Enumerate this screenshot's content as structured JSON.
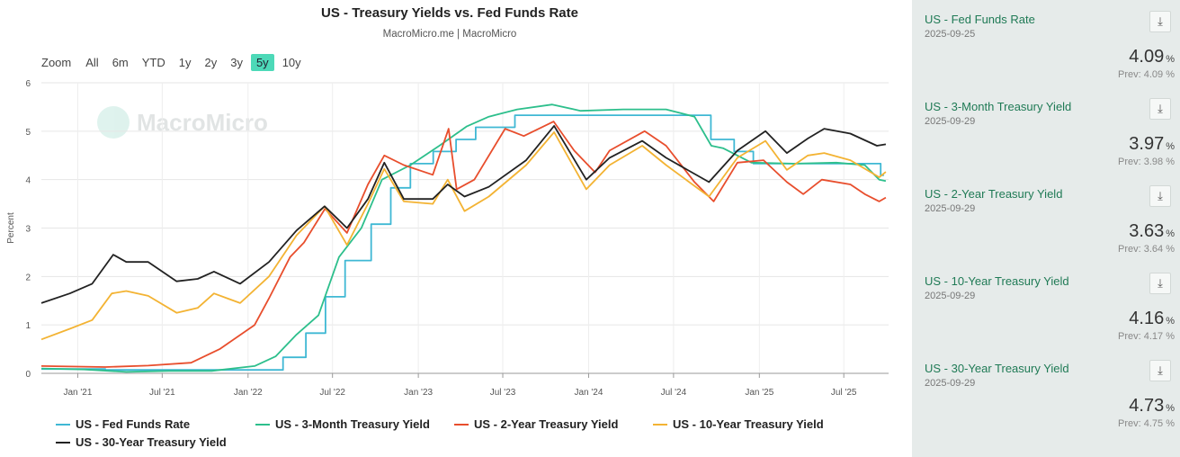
{
  "chart": {
    "title": "US - Treasury Yields vs. Fed Funds Rate",
    "subtitle": "MacroMicro.me | MacroMicro",
    "watermark": "MacroMicro",
    "zoom": {
      "label": "Zoom",
      "buttons": [
        "All",
        "6m",
        "YTD",
        "1y",
        "2y",
        "3y",
        "5y",
        "10y"
      ],
      "active": "5y"
    }
  },
  "chart_data": {
    "type": "line",
    "ylabel": "Percent",
    "ylim": [
      0,
      6
    ],
    "yticks": [
      "0",
      "1",
      "2",
      "3",
      "4",
      "5",
      "6"
    ],
    "xlim": [
      "2020-10-15",
      "2025-10-05"
    ],
    "xticks": [
      {
        "date": "2021-01-01",
        "label": "Jan '21"
      },
      {
        "date": "2021-07-01",
        "label": "Jul '21"
      },
      {
        "date": "2022-01-01",
        "label": "Jan '22"
      },
      {
        "date": "2022-07-01",
        "label": "Jul '22"
      },
      {
        "date": "2023-01-01",
        "label": "Jan '23"
      },
      {
        "date": "2023-07-01",
        "label": "Jul '23"
      },
      {
        "date": "2024-01-01",
        "label": "Jan '24"
      },
      {
        "date": "2024-07-01",
        "label": "Jul '24"
      },
      {
        "date": "2025-01-01",
        "label": "Jan '25"
      },
      {
        "date": "2025-07-01",
        "label": "Jul '25"
      }
    ],
    "grid": true,
    "legend_position": "bottom",
    "series": [
      {
        "name": "US - Fed Funds Rate",
        "color": "#3fb8d4",
        "step": true,
        "points": [
          [
            "2020-10-15",
            0.09
          ],
          [
            "2021-03-01",
            0.07
          ],
          [
            "2022-03-17",
            0.33
          ],
          [
            "2022-05-05",
            0.83
          ],
          [
            "2022-06-16",
            1.58
          ],
          [
            "2022-07-28",
            2.33
          ],
          [
            "2022-09-22",
            3.08
          ],
          [
            "2022-11-03",
            3.83
          ],
          [
            "2022-12-15",
            4.33
          ],
          [
            "2023-02-02",
            4.58
          ],
          [
            "2023-03-23",
            4.83
          ],
          [
            "2023-05-04",
            5.08
          ],
          [
            "2023-07-27",
            5.33
          ],
          [
            "2024-09-19",
            4.83
          ],
          [
            "2024-11-08",
            4.58
          ],
          [
            "2024-12-19",
            4.33
          ],
          [
            "2025-09-18",
            4.09
          ],
          [
            "2025-09-25",
            4.09
          ]
        ]
      },
      {
        "name": "US - 3-Month Treasury Yield",
        "color": "#2dbf8c",
        "points": [
          [
            "2020-10-15",
            0.1
          ],
          [
            "2021-01-15",
            0.08
          ],
          [
            "2021-04-15",
            0.03
          ],
          [
            "2021-07-15",
            0.05
          ],
          [
            "2021-10-15",
            0.05
          ],
          [
            "2022-01-15",
            0.15
          ],
          [
            "2022-03-01",
            0.35
          ],
          [
            "2022-04-15",
            0.8
          ],
          [
            "2022-06-01",
            1.2
          ],
          [
            "2022-07-15",
            2.4
          ],
          [
            "2022-09-01",
            3.0
          ],
          [
            "2022-10-15",
            4.0
          ],
          [
            "2022-12-15",
            4.3
          ],
          [
            "2023-02-15",
            4.7
          ],
          [
            "2023-04-15",
            5.1
          ],
          [
            "2023-06-01",
            5.3
          ],
          [
            "2023-08-01",
            5.45
          ],
          [
            "2023-10-15",
            5.55
          ],
          [
            "2023-12-15",
            5.42
          ],
          [
            "2024-03-15",
            5.45
          ],
          [
            "2024-06-15",
            5.45
          ],
          [
            "2024-08-15",
            5.3
          ],
          [
            "2024-09-20",
            4.7
          ],
          [
            "2024-10-15",
            4.65
          ],
          [
            "2024-12-15",
            4.35
          ],
          [
            "2025-03-15",
            4.33
          ],
          [
            "2025-06-15",
            4.35
          ],
          [
            "2025-08-15",
            4.3
          ],
          [
            "2025-09-15",
            4.0
          ],
          [
            "2025-09-29",
            3.97
          ]
        ]
      },
      {
        "name": "US - 2-Year Treasury Yield",
        "color": "#e84e2d",
        "points": [
          [
            "2020-10-15",
            0.15
          ],
          [
            "2021-03-01",
            0.13
          ],
          [
            "2021-06-01",
            0.16
          ],
          [
            "2021-09-01",
            0.22
          ],
          [
            "2021-11-01",
            0.5
          ],
          [
            "2022-01-15",
            1.0
          ],
          [
            "2022-02-15",
            1.55
          ],
          [
            "2022-04-01",
            2.4
          ],
          [
            "2022-05-01",
            2.7
          ],
          [
            "2022-06-15",
            3.4
          ],
          [
            "2022-08-01",
            2.9
          ],
          [
            "2022-09-15",
            3.9
          ],
          [
            "2022-10-20",
            4.5
          ],
          [
            "2022-12-01",
            4.3
          ],
          [
            "2023-02-01",
            4.1
          ],
          [
            "2023-03-07",
            5.05
          ],
          [
            "2023-03-24",
            3.8
          ],
          [
            "2023-05-01",
            4.0
          ],
          [
            "2023-07-06",
            5.05
          ],
          [
            "2023-08-15",
            4.9
          ],
          [
            "2023-10-18",
            5.2
          ],
          [
            "2023-12-01",
            4.6
          ],
          [
            "2024-01-15",
            4.15
          ],
          [
            "2024-02-15",
            4.6
          ],
          [
            "2024-04-30",
            5.0
          ],
          [
            "2024-06-15",
            4.7
          ],
          [
            "2024-08-15",
            3.95
          ],
          [
            "2024-09-25",
            3.55
          ],
          [
            "2024-11-15",
            4.35
          ],
          [
            "2025-01-10",
            4.4
          ],
          [
            "2025-03-01",
            3.95
          ],
          [
            "2025-04-05",
            3.7
          ],
          [
            "2025-05-15",
            4.0
          ],
          [
            "2025-07-15",
            3.9
          ],
          [
            "2025-08-15",
            3.7
          ],
          [
            "2025-09-15",
            3.55
          ],
          [
            "2025-09-29",
            3.63
          ]
        ]
      },
      {
        "name": "US - 10-Year Treasury Yield",
        "color": "#f3b333",
        "points": [
          [
            "2020-10-15",
            0.7
          ],
          [
            "2020-12-15",
            0.92
          ],
          [
            "2021-02-01",
            1.1
          ],
          [
            "2021-03-15",
            1.65
          ],
          [
            "2021-04-15",
            1.7
          ],
          [
            "2021-06-01",
            1.6
          ],
          [
            "2021-08-01",
            1.25
          ],
          [
            "2021-09-15",
            1.35
          ],
          [
            "2021-10-20",
            1.65
          ],
          [
            "2021-12-15",
            1.45
          ],
          [
            "2022-02-15",
            2.0
          ],
          [
            "2022-04-15",
            2.85
          ],
          [
            "2022-06-14",
            3.45
          ],
          [
            "2022-08-01",
            2.65
          ],
          [
            "2022-09-15",
            3.5
          ],
          [
            "2022-10-20",
            4.22
          ],
          [
            "2022-12-01",
            3.55
          ],
          [
            "2023-02-01",
            3.5
          ],
          [
            "2023-03-05",
            4.0
          ],
          [
            "2023-04-10",
            3.35
          ],
          [
            "2023-06-01",
            3.65
          ],
          [
            "2023-08-20",
            4.3
          ],
          [
            "2023-10-19",
            4.98
          ],
          [
            "2023-12-27",
            3.8
          ],
          [
            "2024-02-15",
            4.3
          ],
          [
            "2024-04-25",
            4.7
          ],
          [
            "2024-06-15",
            4.3
          ],
          [
            "2024-09-15",
            3.65
          ],
          [
            "2024-11-15",
            4.45
          ],
          [
            "2025-01-14",
            4.8
          ],
          [
            "2025-03-01",
            4.2
          ],
          [
            "2025-04-15",
            4.5
          ],
          [
            "2025-05-20",
            4.55
          ],
          [
            "2025-07-15",
            4.4
          ],
          [
            "2025-09-15",
            4.05
          ],
          [
            "2025-09-29",
            4.16
          ]
        ]
      },
      {
        "name": "US - 30-Year Treasury Yield",
        "color": "#222222",
        "points": [
          [
            "2020-10-15",
            1.45
          ],
          [
            "2020-12-15",
            1.65
          ],
          [
            "2021-02-01",
            1.85
          ],
          [
            "2021-03-18",
            2.45
          ],
          [
            "2021-04-15",
            2.3
          ],
          [
            "2021-06-01",
            2.3
          ],
          [
            "2021-08-01",
            1.9
          ],
          [
            "2021-09-15",
            1.95
          ],
          [
            "2021-10-20",
            2.1
          ],
          [
            "2021-12-15",
            1.85
          ],
          [
            "2022-02-15",
            2.3
          ],
          [
            "2022-04-15",
            2.95
          ],
          [
            "2022-06-14",
            3.45
          ],
          [
            "2022-08-01",
            3.0
          ],
          [
            "2022-09-15",
            3.6
          ],
          [
            "2022-10-20",
            4.35
          ],
          [
            "2022-12-01",
            3.6
          ],
          [
            "2023-02-01",
            3.6
          ],
          [
            "2023-03-05",
            3.9
          ],
          [
            "2023-04-10",
            3.65
          ],
          [
            "2023-06-01",
            3.85
          ],
          [
            "2023-08-20",
            4.4
          ],
          [
            "2023-10-19",
            5.11
          ],
          [
            "2023-12-27",
            4.0
          ],
          [
            "2024-02-15",
            4.45
          ],
          [
            "2024-04-25",
            4.8
          ],
          [
            "2024-06-15",
            4.45
          ],
          [
            "2024-09-15",
            3.95
          ],
          [
            "2024-11-15",
            4.6
          ],
          [
            "2025-01-14",
            5.0
          ],
          [
            "2025-03-01",
            4.55
          ],
          [
            "2025-04-15",
            4.85
          ],
          [
            "2025-05-20",
            5.05
          ],
          [
            "2025-07-15",
            4.95
          ],
          [
            "2025-09-10",
            4.7
          ],
          [
            "2025-09-29",
            4.73
          ]
        ]
      }
    ]
  },
  "cards": [
    {
      "name": "US - Fed Funds Rate",
      "date": "2025-09-25",
      "value": "4.09",
      "unit": "%",
      "prev": "Prev: 4.09 %"
    },
    {
      "name": "US - 3-Month Treasury Yield",
      "date": "2025-09-29",
      "value": "3.97",
      "unit": "%",
      "prev": "Prev: 3.98 %"
    },
    {
      "name": "US - 2-Year Treasury Yield",
      "date": "2025-09-29",
      "value": "3.63",
      "unit": "%",
      "prev": "Prev: 3.64 %"
    },
    {
      "name": "US - 10-Year Treasury Yield",
      "date": "2025-09-29",
      "value": "4.16",
      "unit": "%",
      "prev": "Prev: 4.17 %"
    },
    {
      "name": "US - 30-Year Treasury Yield",
      "date": "2025-09-29",
      "value": "4.73",
      "unit": "%",
      "prev": "Prev: 4.75 %"
    }
  ],
  "icons": {
    "download": "download-icon",
    "logo": "macromicro-logo-icon"
  }
}
